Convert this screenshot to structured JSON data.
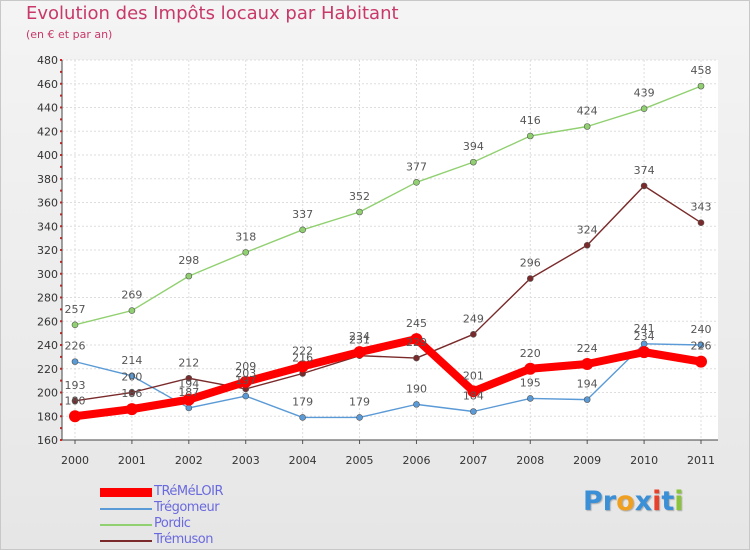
{
  "title": "Evolution des Impôts locaux par Habitant",
  "subtitle": "(en € et par an)",
  "logo": {
    "text": "Proxiti",
    "letter_colors": [
      "#3a8fd6",
      "#3a8fd6",
      "#f0a020",
      "#3a8fd6",
      "#e8402a",
      "#3a8fd6",
      "#8ac43a"
    ]
  },
  "chart_data": {
    "type": "line",
    "title": "Evolution des Impôts locaux par Habitant",
    "subtitle": "(en € et par an)",
    "xlabel": "",
    "ylabel": "",
    "ylim": [
      160,
      480
    ],
    "y_ticks": [
      160,
      180,
      200,
      220,
      240,
      260,
      280,
      300,
      320,
      340,
      360,
      380,
      400,
      420,
      440,
      460,
      480
    ],
    "grid": true,
    "legend_position": "bottom-left",
    "x": [
      "2000",
      "2001",
      "2002",
      "2003",
      "2004",
      "2005",
      "2006",
      "2007",
      "2008",
      "2009",
      "2010",
      "2011"
    ],
    "series": [
      {
        "name": "TRéMéLOIR",
        "color": "#ff0000",
        "emphasis": true,
        "values": [
          180,
          186,
          194,
          209,
          222,
          234,
          245,
          201,
          220,
          224,
          234,
          226
        ]
      },
      {
        "name": "Trégomeur",
        "color": "#5a9ad6",
        "emphasis": false,
        "values": [
          226,
          214,
          187,
          197,
          179,
          179,
          190,
          184,
          195,
          194,
          241,
          240
        ]
      },
      {
        "name": "Pordic",
        "color": "#90d070",
        "emphasis": false,
        "values": [
          257,
          269,
          298,
          318,
          337,
          352,
          377,
          394,
          416,
          424,
          439,
          458
        ]
      },
      {
        "name": "Trémuson",
        "color": "#7a2a2a",
        "emphasis": false,
        "values": [
          193,
          200,
          212,
          203,
          216,
          231,
          229,
          249,
          296,
          324,
          374,
          343
        ]
      }
    ]
  }
}
